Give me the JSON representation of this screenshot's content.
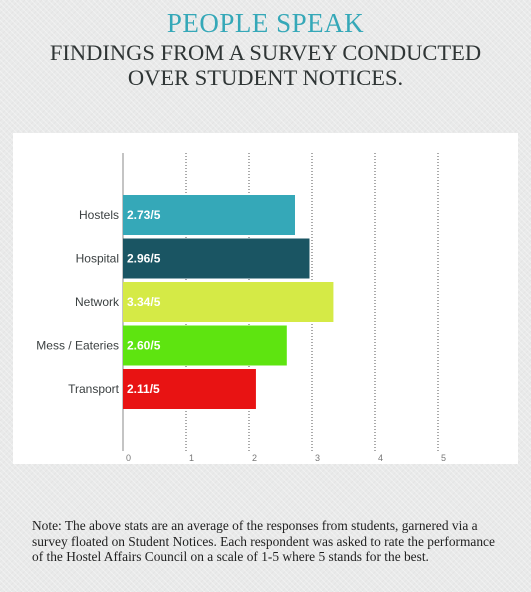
{
  "header": {
    "headline": "PEOPLE SPEAK",
    "subtitle": "FINDINGS FROM A SURVEY CONDUCTED OVER STUDENT NOTICES."
  },
  "colors": {
    "headline": "#35a8b8",
    "subtitle": "#2f3535"
  },
  "chart_data": {
    "type": "bar",
    "orientation": "horizontal",
    "categories": [
      "Hostels",
      "Hospital",
      "Network",
      "Mess / Eateries",
      "Transport"
    ],
    "values": [
      2.73,
      2.96,
      3.34,
      2.6,
      2.11
    ],
    "value_labels": [
      "2.73/5",
      "2.96/5",
      "3.34/5",
      "2.60/5",
      "2.11/5"
    ],
    "colors": [
      "#35a8b8",
      "#1a5563",
      "#d5ea46",
      "#5ee410",
      "#e81313"
    ],
    "xlim": [
      0,
      6
    ],
    "x_ticks": [
      0,
      1,
      2,
      3,
      4,
      5
    ],
    "x_tick_labels": [
      "0",
      "1",
      "2",
      "3",
      "4",
      "5"
    ],
    "grid": "vertical dashed",
    "legend": "none"
  },
  "note": "Note: The above stats are an average of the responses from students, garnered via a survey floated on Student Notices. Each respondent was asked to rate the performance of the Hostel Affairs Council on a scale of 1-5 where 5 stands for the best."
}
